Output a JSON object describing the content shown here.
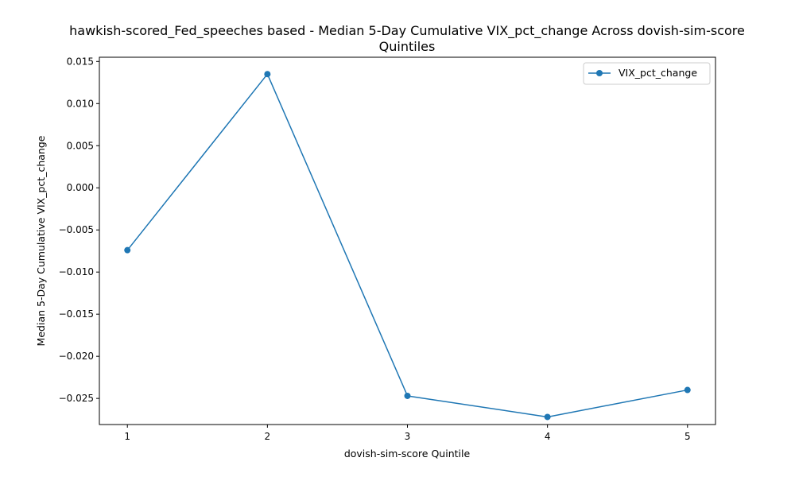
{
  "chart_data": {
    "type": "line",
    "title_lines": [
      "hawkish-scored_Fed_speeches based - Median 5-Day Cumulative VIX_pct_change Across dovish-sim-score",
      "Quintiles"
    ],
    "xlabel": "dovish-sim-score Quintile",
    "ylabel": "Median 5-Day Cumulative VIX_pct_change",
    "x": [
      1,
      2,
      3,
      4,
      5
    ],
    "x_tick_labels": [
      "1",
      "2",
      "3",
      "4",
      "5"
    ],
    "xlim": [
      0.8,
      5.2
    ],
    "ylim": [
      -0.0281,
      0.0155
    ],
    "y_ticks": [
      -0.025,
      -0.02,
      -0.015,
      -0.01,
      -0.005,
      0.0,
      0.005,
      0.01,
      0.015
    ],
    "y_tick_labels": [
      "−0.025",
      "−0.020",
      "−0.015",
      "−0.010",
      "−0.005",
      "0.000",
      "0.005",
      "0.010",
      "0.015"
    ],
    "series": [
      {
        "name": "VIX_pct_change",
        "values": [
          -0.0074,
          0.0135,
          -0.0247,
          -0.0272,
          -0.024
        ],
        "color": "#1f77b4",
        "marker": "circle"
      }
    ],
    "legend": {
      "position": "top-right"
    },
    "grid": false
  }
}
